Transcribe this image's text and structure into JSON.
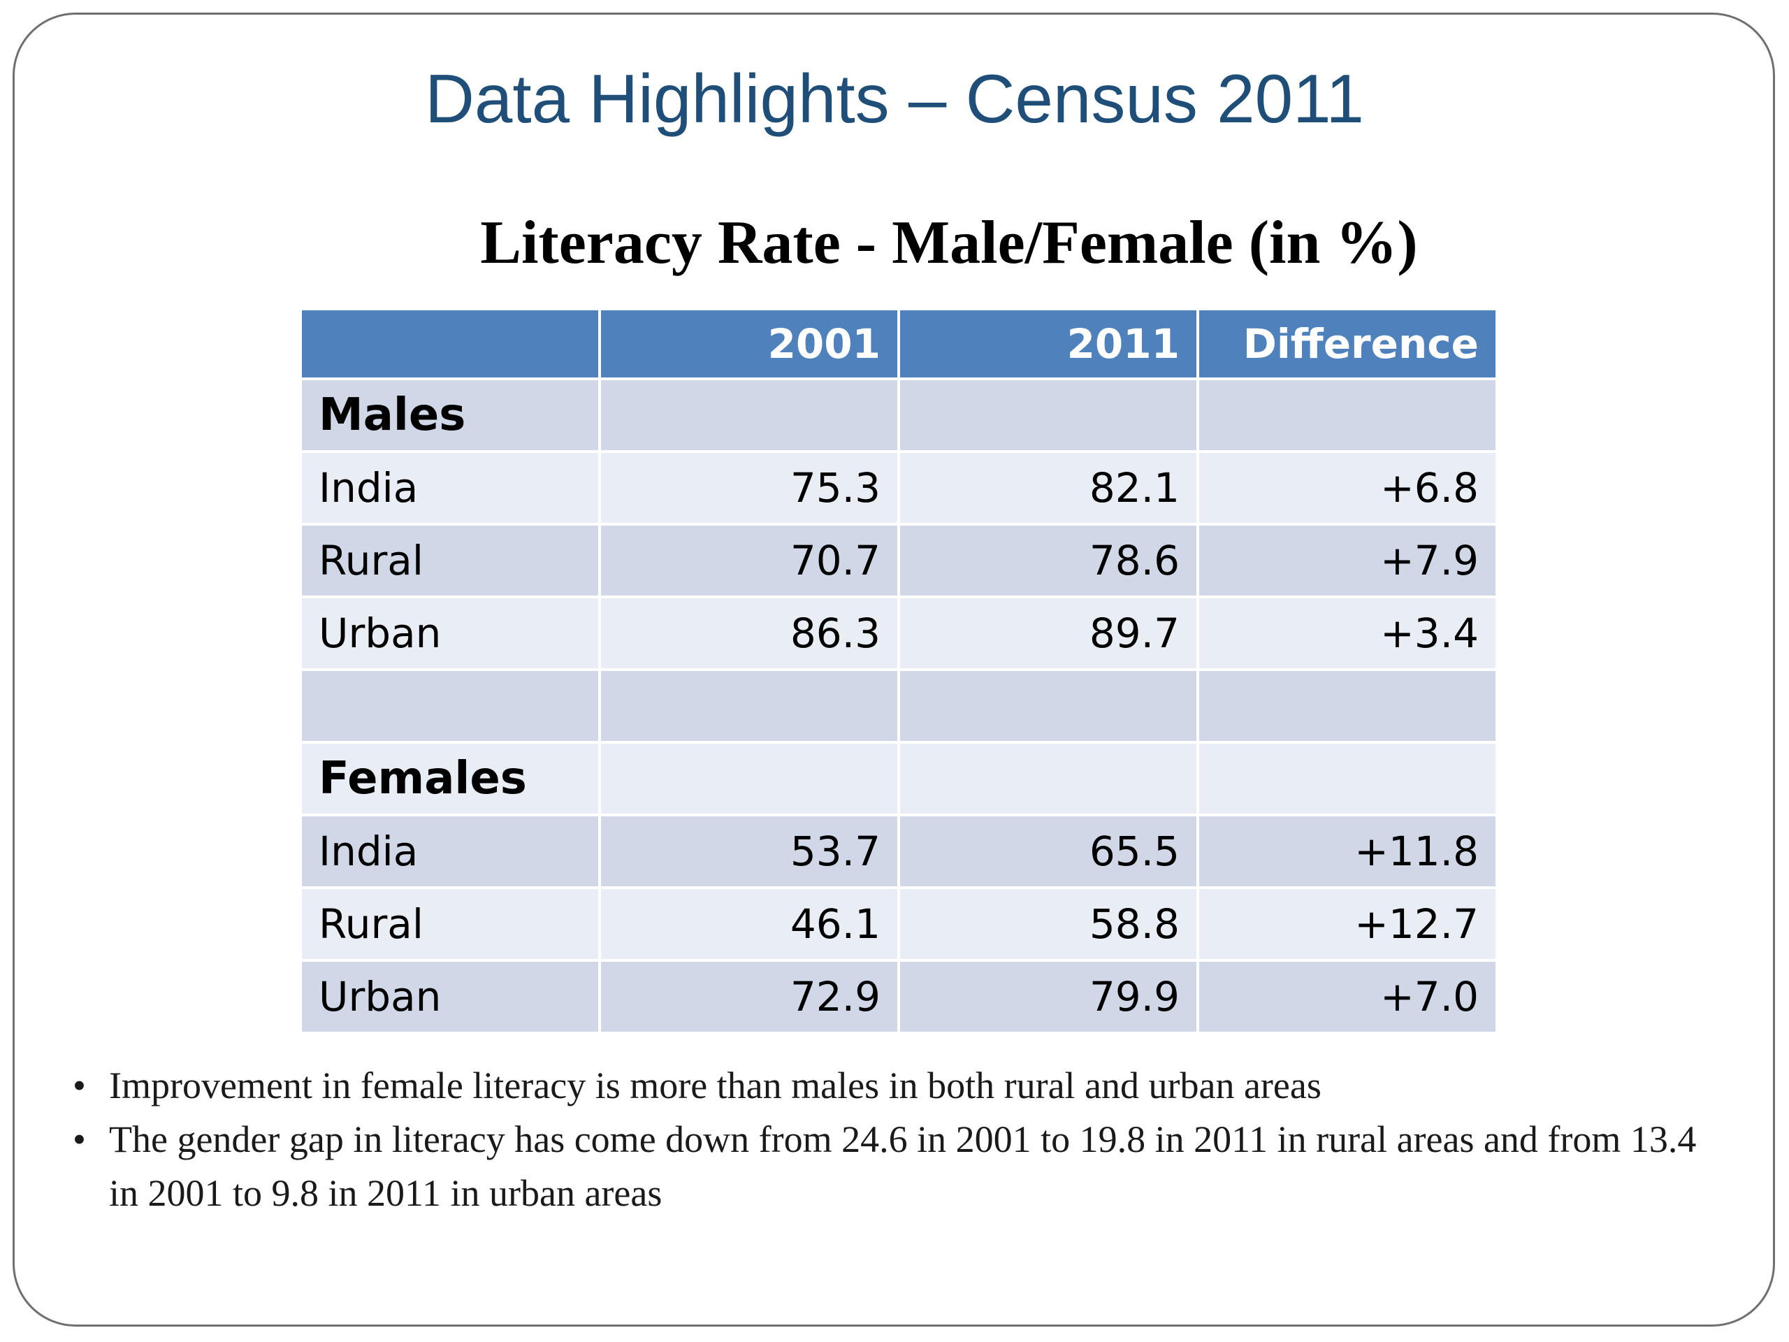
{
  "slide": {
    "title": "Data Highlights – Census 2011",
    "subtitle": "Literacy Rate - Male/Female (in %)"
  },
  "table": {
    "headers": [
      "",
      "2001",
      "2011",
      "Difference"
    ],
    "rows": [
      {
        "label": "Males",
        "section": true,
        "values": [
          "",
          "",
          ""
        ]
      },
      {
        "label": "India",
        "values": [
          "75.3",
          "82.1",
          "+6.8"
        ]
      },
      {
        "label": "Rural",
        "values": [
          "70.7",
          "78.6",
          "+7.9"
        ]
      },
      {
        "label": "Urban",
        "values": [
          "86.3",
          "89.7",
          "+3.4"
        ]
      },
      {
        "label": "",
        "values": [
          "",
          "",
          ""
        ]
      },
      {
        "label": "Females",
        "section": true,
        "values": [
          "",
          "",
          ""
        ]
      },
      {
        "label": "India",
        "values": [
          "53.7",
          "65.5",
          "+11.8"
        ]
      },
      {
        "label": "Rural",
        "values": [
          "46.1",
          "58.8",
          "+12.7"
        ]
      },
      {
        "label": "Urban",
        "values": [
          "72.9",
          "79.9",
          "+7.0"
        ]
      }
    ]
  },
  "bullets": [
    "Improvement in female literacy is more than males in both rural and urban areas",
    "The gender gap in literacy has come down from 24.6 in 2001 to 19.8 in 2011 in rural areas and from 13.4 in 2001 to 9.8  in 2011 in urban areas"
  ],
  "colors": {
    "title": "#1f4e79",
    "table_header": "#4f81bd",
    "row_dark": "#d0d8e8",
    "row_light": "#e9edf4"
  }
}
